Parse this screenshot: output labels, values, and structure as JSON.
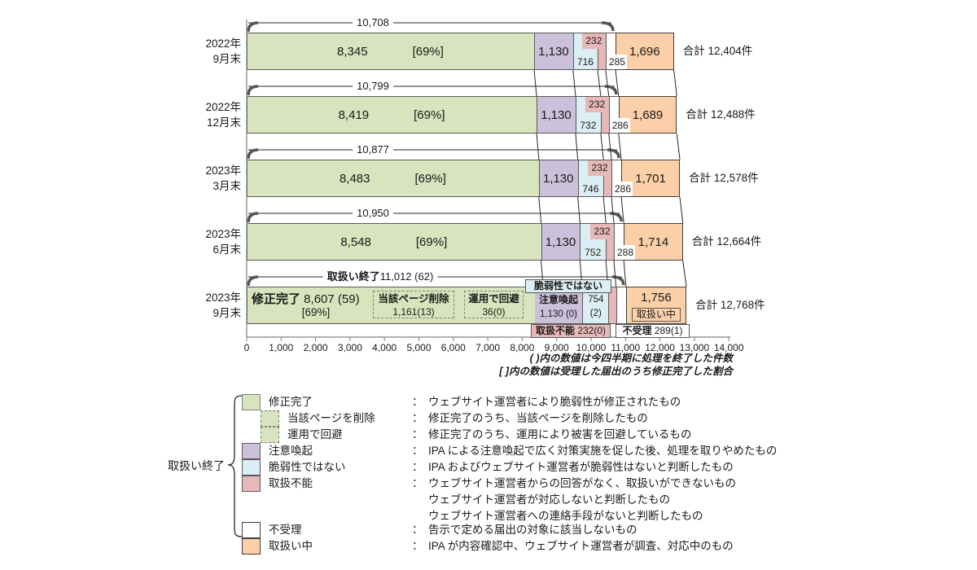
{
  "colors": {
    "fixed": "#D7E4BD",
    "caution": "#CCC1DA",
    "not_vuln": "#DBEEF3",
    "unable": "#E6B9B8",
    "rejected": "#FFFFFF",
    "in_progress": "#FBCFA8",
    "border": "#595959",
    "axis": "#808080",
    "line": "#1a1a1a",
    "brace": "#555555"
  },
  "chart_data": {
    "type": "bar",
    "orientation": "horizontal-stacked",
    "x_axis": {
      "min": 0,
      "max": 14000,
      "step": 1000,
      "tick_labels": [
        "0",
        "1,000",
        "2,000",
        "3,000",
        "4,000",
        "5,000",
        "6,000",
        "7,000",
        "8,000",
        "9,000",
        "10,000",
        "11,000",
        "12,000",
        "13,000",
        "14,000"
      ]
    },
    "footnotes": [
      "( )内の数値は今四半期に処理を終了した件数",
      "[ ]内の数値は受理した届出のうち修正完了した割合"
    ],
    "series_names": {
      "fixed": "修正完了",
      "caution": "注意喚起",
      "not_vuln": "脆弱性ではない",
      "unable": "取扱不能",
      "rejected": "不受理",
      "in_progress": "取扱い中",
      "closed_group": "取扱い終了",
      "sub_fixed": [
        "当該ページを削除",
        "運用で回避"
      ]
    },
    "rows": [
      {
        "period": [
          "2022年",
          "9月末"
        ],
        "values": {
          "fixed": 8345,
          "caution": 1130,
          "not_vuln": 716,
          "unable": 232,
          "rejected": 285,
          "in_progress": 1696
        },
        "labels": {
          "fixed": "8,345",
          "fixed_pct": "[69%]",
          "caution": "1,130",
          "not_vuln": "716",
          "unable": "232",
          "rejected": "285",
          "in_progress": "1,696"
        },
        "closed_total": 10708,
        "closed_label": "10,708",
        "total_label": "合計 12,404件"
      },
      {
        "period": [
          "2022年",
          "12月末"
        ],
        "values": {
          "fixed": 8419,
          "caution": 1130,
          "not_vuln": 732,
          "unable": 232,
          "rejected": 286,
          "in_progress": 1689
        },
        "labels": {
          "fixed": "8,419",
          "fixed_pct": "[69%]",
          "caution": "1,130",
          "not_vuln": "732",
          "unable": "232",
          "rejected": "286",
          "in_progress": "1,689"
        },
        "closed_total": 10799,
        "closed_label": "10,799",
        "total_label": "合計 12,488件"
      },
      {
        "period": [
          "2023年",
          "3月末"
        ],
        "values": {
          "fixed": 8483,
          "caution": 1130,
          "not_vuln": 746,
          "unable": 232,
          "rejected": 286,
          "in_progress": 1701
        },
        "labels": {
          "fixed": "8,483",
          "fixed_pct": "[69%]",
          "caution": "1,130",
          "not_vuln": "746",
          "unable": "232",
          "rejected": "286",
          "in_progress": "1,701"
        },
        "closed_total": 10877,
        "closed_label": "10,877",
        "total_label": "合計 12,578件"
      },
      {
        "period": [
          "2023年",
          "6月末"
        ],
        "values": {
          "fixed": 8548,
          "caution": 1130,
          "not_vuln": 752,
          "unable": 232,
          "rejected": 288,
          "in_progress": 1714
        },
        "labels": {
          "fixed": "8,548",
          "fixed_pct": "[69%]",
          "caution": "1,130",
          "not_vuln": "752",
          "unable": "232",
          "rejected": "288",
          "in_progress": "1,714"
        },
        "closed_total": 10950,
        "closed_label": "10,950",
        "total_label": "合計 12,664件"
      },
      {
        "period": [
          "2023年",
          "9月末"
        ],
        "values": {
          "fixed": 8607,
          "caution": 1130,
          "not_vuln": 754,
          "unable": 232,
          "rejected": 289,
          "in_progress": 1756
        },
        "closed_total": 11012,
        "closed_label_prefix": "取扱い終了",
        "closed_label": "11,012  (62)",
        "total_label": "合計 12,768件",
        "detail": {
          "fixed_title": "修正完了",
          "fixed_value": " 8,607  (59)",
          "fixed_pct": "[69%]",
          "page_removed_label": "当該ページ削除",
          "page_removed_value": "1,161(13)",
          "workaround_label": "運用で回避",
          "workaround_value": "36(0)",
          "caution_label": "注意喚起",
          "caution_value": "1,130 (0)",
          "not_vuln_value_line1": "754",
          "not_vuln_value_line2": "(2)",
          "not_vuln_callout": "脆弱性ではない",
          "unable_label": "取扱不能",
          "unable_value": " 232(0)",
          "rejected_label": "不受理",
          "rejected_value": " 289(1)",
          "in_progress_value": "1,756",
          "in_progress_tag": "取扱い中"
        }
      }
    ]
  },
  "legend": {
    "group_label": "取扱い終了",
    "items": [
      {
        "swatch": "green-solid",
        "indent": false,
        "label": "修正完了",
        "desc": [
          "ウェブサイト運営者により脆弱性が修正されたもの"
        ]
      },
      {
        "swatch": "green-dashed",
        "indent": true,
        "label": "当該ページを削除",
        "desc": [
          "修正完了のうち、当該ページを削除したもの"
        ]
      },
      {
        "swatch": "green-dashed",
        "indent": true,
        "label": "運用で回避",
        "desc": [
          "修正完了のうち、運用により被害を回避しているもの"
        ]
      },
      {
        "swatch": "purple",
        "indent": false,
        "label": "注意喚起",
        "desc": [
          "IPA による注意喚起で広く対策実施を促した後、処理を取りやめたもの"
        ]
      },
      {
        "swatch": "lightblue",
        "indent": false,
        "label": "脆弱性ではない",
        "desc": [
          "IPA およびウェブサイト運営者が脆弱性はないと判断したもの"
        ]
      },
      {
        "swatch": "pink",
        "indent": false,
        "label": "取扱不能",
        "desc": [
          "ウェブサイト運営者からの回答がなく、取扱いができないもの",
          "ウェブサイト運営者が対応しないと判断したもの",
          "ウェブサイト運営者への連絡手段がないと判断したもの"
        ]
      },
      {
        "swatch": "white",
        "indent": false,
        "label": "不受理",
        "desc": [
          "告示で定める届出の対象に該当しないもの"
        ]
      },
      {
        "swatch": "orange",
        "indent": false,
        "label": "取扱い中",
        "desc": [
          "IPA が内容確認中、ウェブサイト運営者が調査、対応中のもの"
        ]
      }
    ]
  }
}
